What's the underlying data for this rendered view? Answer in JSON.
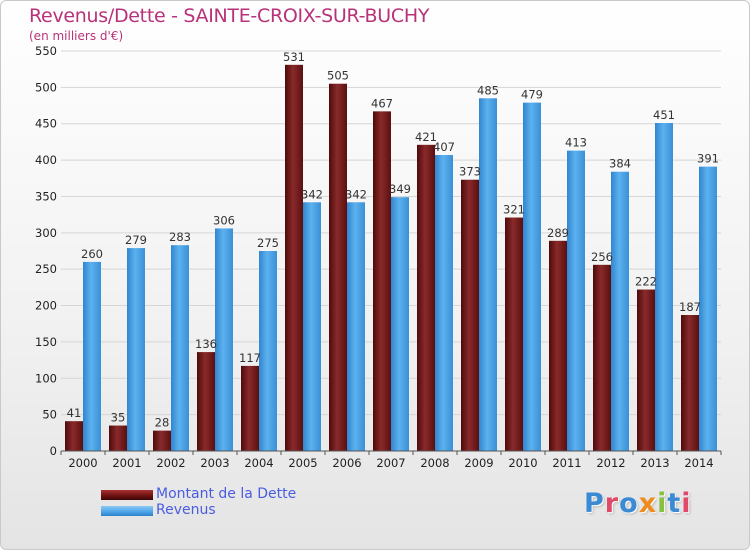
{
  "title": "Revenus/Dette - SAINTE-CROIX-SUR-BUCHY",
  "unit_label": "(en milliers d'€)",
  "logo_text": "Proxiti",
  "legend": [
    {
      "label": "Montant de la Dette",
      "color": "#7a1a1a"
    },
    {
      "label": "Revenus",
      "color": "#4aa3e6"
    }
  ],
  "chart_data": {
    "type": "bar",
    "title": "Revenus/Dette - SAINTE-CROIX-SUR-BUCHY",
    "ylabel": "(en milliers d'€)",
    "xlabel": "",
    "ylim": [
      0,
      550
    ],
    "yticks": [
      0,
      50,
      100,
      150,
      200,
      250,
      300,
      350,
      400,
      450,
      500,
      550
    ],
    "grid": true,
    "categories": [
      "2000",
      "2001",
      "2002",
      "2003",
      "2004",
      "2005",
      "2006",
      "2007",
      "2008",
      "2009",
      "2010",
      "2011",
      "2012",
      "2013",
      "2014"
    ],
    "series": [
      {
        "name": "Montant de la Dette",
        "color": "#7a1a1a",
        "values": [
          41,
          35,
          28,
          136,
          117,
          531,
          505,
          467,
          421,
          373,
          321,
          289,
          256,
          222,
          187
        ]
      },
      {
        "name": "Revenus",
        "color": "#4aa3e6",
        "values": [
          260,
          279,
          283,
          306,
          275,
          342,
          342,
          349,
          407,
          485,
          479,
          413,
          384,
          451,
          391
        ]
      }
    ]
  }
}
